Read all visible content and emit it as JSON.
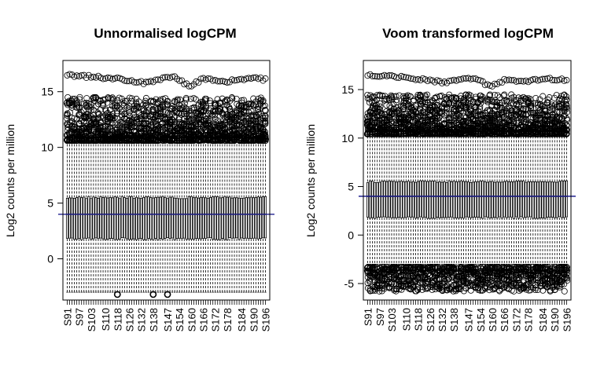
{
  "chart_data": [
    {
      "type": "boxplot",
      "title": "Unnormalised logCPM",
      "xlabel": "",
      "ylabel": "Log2 counts per million",
      "ylim": [
        -3.7,
        17.8
      ],
      "yticks": [
        0,
        5,
        10,
        15
      ],
      "n_samples": 84,
      "sample_labels": [
        "S91",
        "S97",
        "S103",
        "S110",
        "S118",
        "S126",
        "S132",
        "S138",
        "S147",
        "S154",
        "S160",
        "S166",
        "S172",
        "S178",
        "S184",
        "S190",
        "S196"
      ],
      "median": 4.0,
      "box_q1": 1.8,
      "box_q3": 5.5,
      "whisker_low": -3.0,
      "whisker_high": 10.5,
      "high_outliers_range": [
        10.6,
        14.5
      ],
      "top_outlier_values": [
        16.5,
        16.4,
        16.3,
        16.2,
        16.0,
        15.8,
        16.1,
        16.3,
        15.5,
        16.2,
        15.9,
        16.0,
        16.2,
        16.1
      ],
      "low_outliers": [
        {
          "sample": "S118",
          "value": -3.2
        },
        {
          "sample": "S138",
          "value": -3.2
        },
        {
          "sample": "S147",
          "value": -3.2
        }
      ],
      "reference_line": 4.0,
      "reference_line_color": "#1f1f8f"
    },
    {
      "type": "boxplot",
      "title": "Voom transformed logCPM",
      "xlabel": "",
      "ylabel": "Log2 counts per million",
      "ylim": [
        -6.7,
        18.0
      ],
      "yticks": [
        -5,
        0,
        5,
        10,
        15
      ],
      "n_samples": 84,
      "sample_labels": [
        "S91",
        "S97",
        "S103",
        "S110",
        "S118",
        "S126",
        "S132",
        "S138",
        "S147",
        "S154",
        "S160",
        "S166",
        "S172",
        "S178",
        "S184",
        "S190",
        "S196"
      ],
      "median": 4.0,
      "box_q1": 1.8,
      "box_q3": 5.5,
      "whisker_low": -3.0,
      "whisker_high": 10.3,
      "high_outliers_range": [
        10.4,
        14.5
      ],
      "low_outliers_range": [
        -5.8,
        -3.3
      ],
      "top_outlier_values": [
        16.5,
        16.4,
        16.3,
        16.1,
        16.0,
        15.7,
        16.1,
        16.2,
        15.3,
        16.0,
        15.8,
        16.0,
        16.1,
        16.0
      ],
      "reference_line": 4.0,
      "reference_line_color": "#1f1f8f"
    }
  ]
}
